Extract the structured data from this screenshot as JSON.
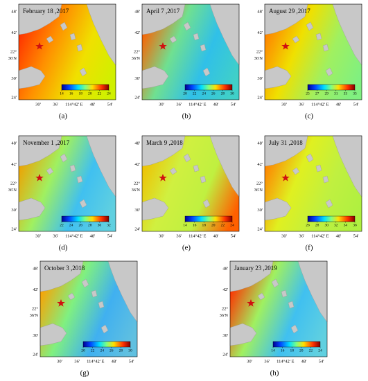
{
  "lat_labels": [
    "48'",
    "42'",
    "22°",
    "36'N",
    "30'",
    "24'"
  ],
  "lon_labels": [
    "30'",
    "36'",
    "114°42' E",
    "48'",
    "54'"
  ],
  "panels": [
    {
      "label": "(a)",
      "title": "February 18 ,2017",
      "colorbar_ticks": [
        14,
        16,
        18,
        20,
        22,
        24
      ],
      "sea_colors": [
        "#ff3000",
        "#ff9000",
        "#f0e000",
        "#d0f000"
      ]
    },
    {
      "label": "(b)",
      "title": "April 7 ,2017",
      "colorbar_ticks": [
        20,
        22,
        24,
        26,
        28,
        30
      ],
      "sea_colors": [
        "#ff6000",
        "#70e090",
        "#30c0e8",
        "#40d0c8"
      ]
    },
    {
      "label": "(c)",
      "title": "August 29 ,2017",
      "colorbar_ticks": [
        25,
        27,
        29,
        31,
        33,
        35
      ],
      "sea_colors": [
        "#ff8000",
        "#f0e000",
        "#a0f060",
        "#80f080"
      ]
    },
    {
      "label": "(d)",
      "title": "November 1 ,2017",
      "colorbar_ticks": [
        22,
        24,
        26,
        28,
        30,
        32
      ],
      "sea_colors": [
        "#f0a000",
        "#a0f060",
        "#40c0f0",
        "#60d0e0"
      ]
    },
    {
      "label": "(e)",
      "title": "March 9 ,2018",
      "colorbar_ticks": [
        14,
        16,
        18,
        20,
        22,
        24
      ],
      "sea_colors": [
        "#f0c000",
        "#d0f040",
        "#c0f040",
        "#ff6000"
      ]
    },
    {
      "label": "(f)",
      "title": "July 31 ,2018",
      "colorbar_ticks": [
        26,
        28,
        30,
        32,
        34,
        36
      ],
      "sea_colors": [
        "#ff8000",
        "#e0f020",
        "#c0f040",
        "#b0f040"
      ]
    },
    {
      "label": "(g)",
      "title": "October 3 ,2018",
      "colorbar_ticks": [
        20,
        22,
        24,
        26,
        28,
        30
      ],
      "sea_colors": [
        "#ffa000",
        "#80f080",
        "#40b0f0",
        "#60c0e0"
      ]
    },
    {
      "label": "(h)",
      "title": "January 23 ,2019",
      "colorbar_ticks": [
        14,
        16,
        18,
        20,
        22,
        24
      ],
      "sea_colors": [
        "#ff3000",
        "#a0f060",
        "#40c0f0",
        "#60d0e0"
      ]
    }
  ]
}
